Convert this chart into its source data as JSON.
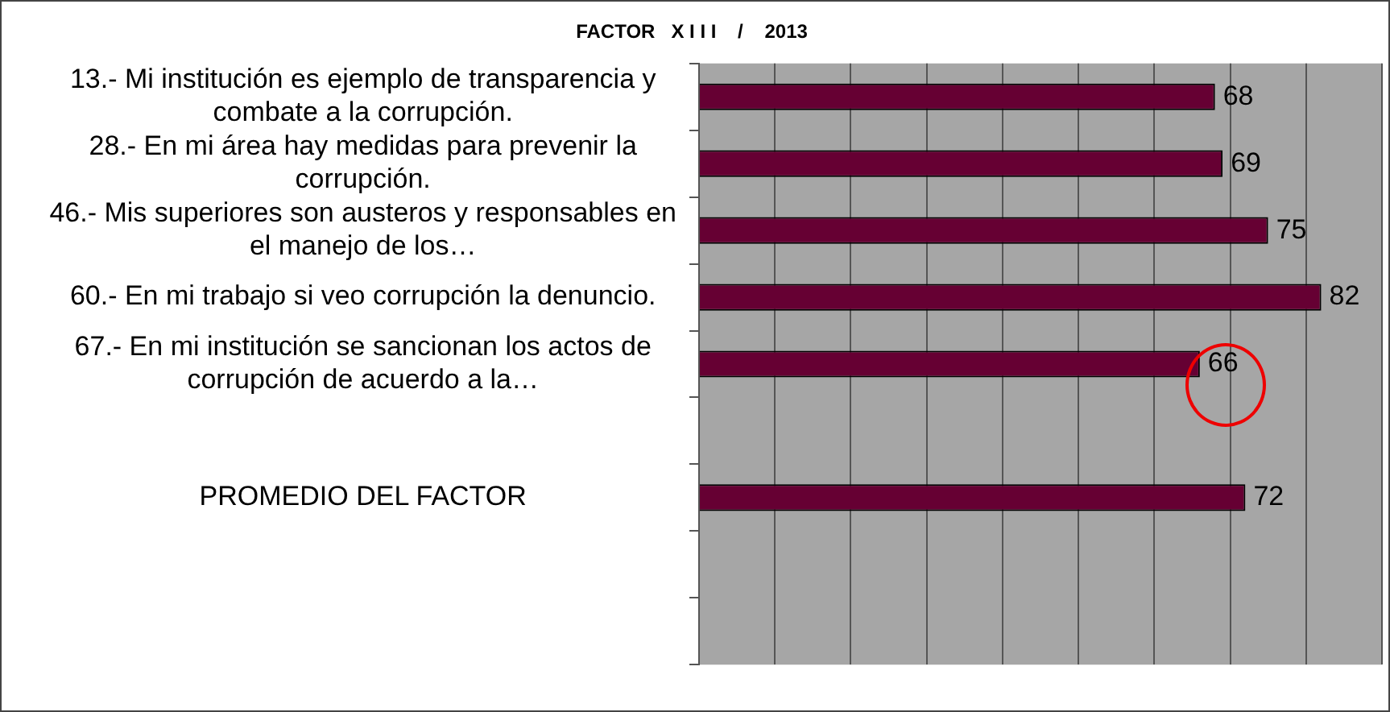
{
  "chart_data": {
    "type": "bar",
    "orientation": "horizontal",
    "title": "FACTOR   X I I I    /    2013",
    "categories": [
      "13.- Mi institución es ejemplo de transparencia y combate a la corrupción.",
      "28.- En mi área hay medidas para prevenir la corrupción.",
      "46.- Mis superiores son austeros y responsables en el manejo de los…",
      "60.- En mi trabajo si veo corrupción la denuncio.",
      "67.- En mi institución se sancionan los actos de corrupción de acuerdo a la…",
      null,
      "PROMEDIO DEL FACTOR",
      null,
      null
    ],
    "values": [
      68,
      69,
      75,
      82,
      66,
      null,
      72,
      null,
      null
    ],
    "color": "#660033",
    "data_labels": true,
    "xlim": [
      0,
      90
    ],
    "xticks": [
      {
        "value": 0,
        "label": null
      },
      {
        "value": 10,
        "label": null
      },
      {
        "value": 20,
        "label": null
      },
      {
        "value": 30,
        "label": null
      },
      {
        "value": 40,
        "label": null
      },
      {
        "value": 50,
        "label": null
      },
      {
        "value": 60,
        "label": null
      },
      {
        "value": 70,
        "label": null
      },
      {
        "value": 80,
        "label": null
      },
      {
        "value": 90,
        "label": null
      }
    ],
    "tick_labels": "y",
    "grid": "x",
    "legend": false
  }
}
